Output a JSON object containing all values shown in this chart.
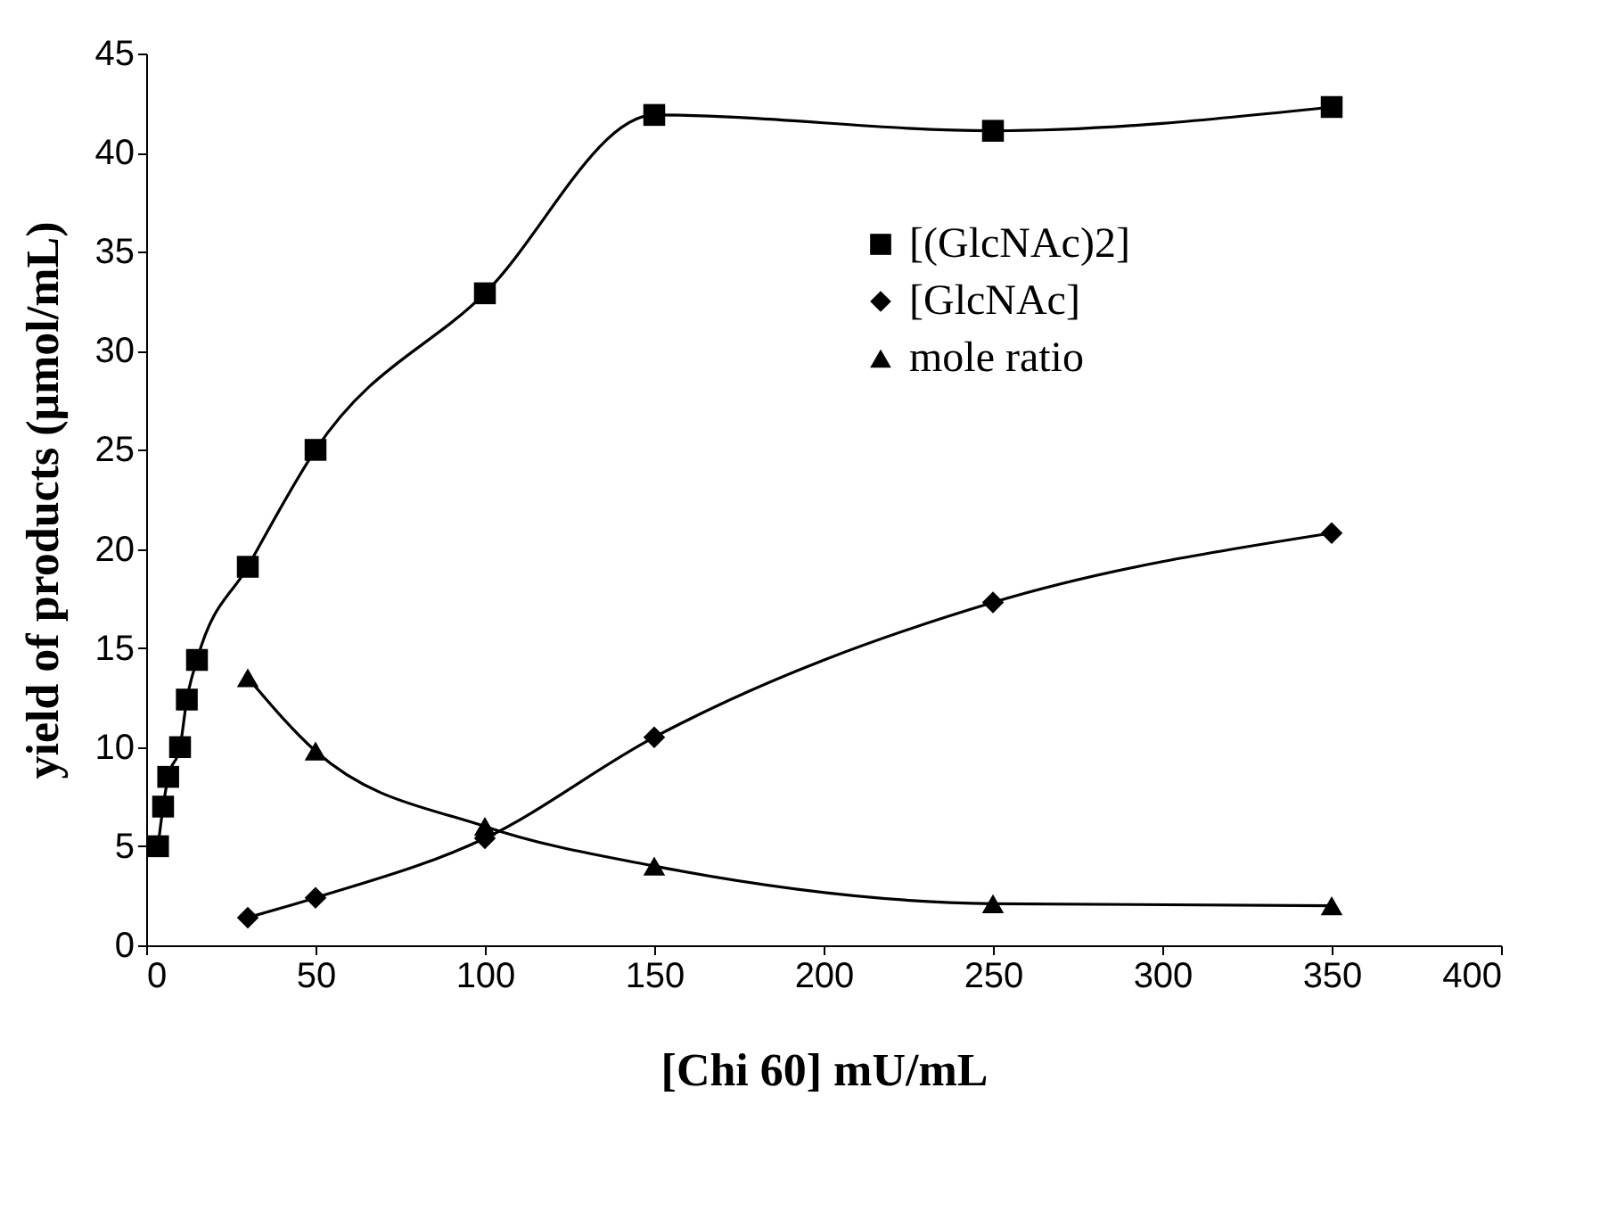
{
  "chart_data": {
    "type": "line",
    "xlabel": "[Chi 60] mU/mL",
    "ylabel": "yield of products (μmol/mL)",
    "xlim": [
      0,
      400
    ],
    "xticks": [
      0,
      50,
      100,
      150,
      200,
      250,
      300,
      350,
      400
    ],
    "ylim": [
      0,
      45
    ],
    "yticks": [
      0,
      5,
      10,
      15,
      20,
      25,
      30,
      35,
      40,
      45
    ],
    "grid": false,
    "legend": "right",
    "series": [
      {
        "name": "[(GlcNAc)2]",
        "color": "#000000",
        "marker": "square",
        "x": [
          3.5,
          5,
          6.5,
          10,
          12,
          15,
          30,
          50,
          100,
          150,
          250,
          350
        ],
        "values": [
          5.0,
          7.0,
          8.5,
          10.0,
          12.4,
          14.4,
          19.1,
          25.0,
          32.9,
          41.9,
          41.1,
          42.3
        ]
      },
      {
        "name": "[GlcNAc]",
        "color": "#000000",
        "marker": "diamond",
        "x": [
          30,
          50,
          100,
          150,
          250,
          350
        ],
        "values": [
          1.4,
          2.4,
          5.4,
          10.5,
          17.3,
          20.8
        ]
      },
      {
        "name": "mole ratio",
        "color": "#000000",
        "marker": "triangle",
        "x": [
          30,
          50,
          100,
          150,
          250,
          350
        ],
        "values": [
          13.5,
          9.8,
          6.0,
          4.0,
          2.1,
          2.0
        ]
      }
    ]
  }
}
